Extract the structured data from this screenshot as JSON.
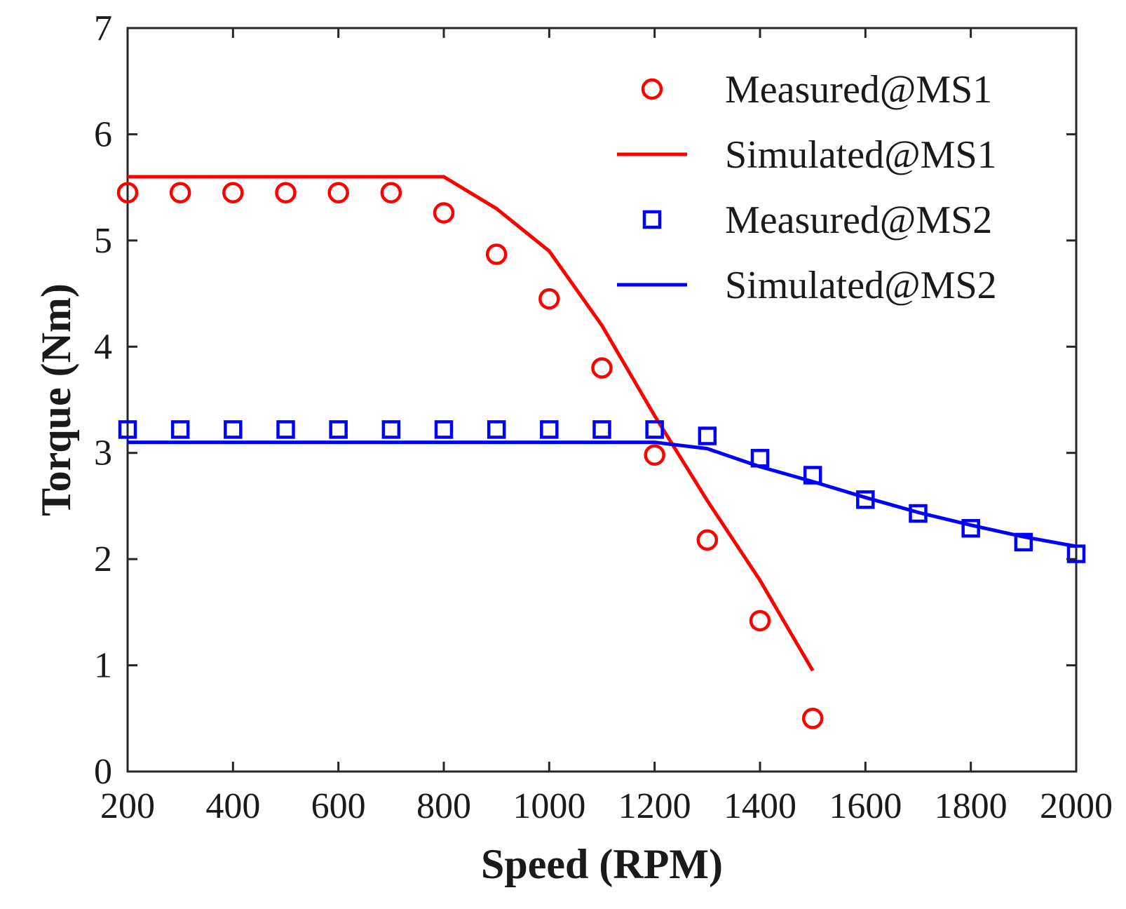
{
  "chart_data": {
    "type": "line",
    "title": "",
    "xlabel": "Speed (RPM)",
    "ylabel": "Torque (Nm)",
    "xlim": [
      200,
      2000
    ],
    "ylim": [
      0,
      7
    ],
    "xticks": [
      200,
      400,
      600,
      800,
      1000,
      1200,
      1400,
      1600,
      1800,
      2000
    ],
    "yticks": [
      0,
      1,
      2,
      3,
      4,
      5,
      6,
      7
    ],
    "grid": false,
    "legend_position": "top-right",
    "series": [
      {
        "name": "Measured@MS1",
        "kind": "marker",
        "marker": "circle",
        "color": "#ff0000",
        "x": [
          200,
          300,
          400,
          500,
          600,
          700,
          800,
          900,
          1000,
          1100,
          1200,
          1300,
          1400,
          1500
        ],
        "y": [
          5.45,
          5.45,
          5.45,
          5.45,
          5.45,
          5.45,
          5.26,
          4.87,
          4.45,
          3.8,
          2.98,
          2.18,
          1.42,
          0.5
        ]
      },
      {
        "name": "Simulated@MS1",
        "kind": "line",
        "color": "#ff0000",
        "x": [
          200,
          800,
          900,
          1000,
          1100,
          1200,
          1300,
          1400,
          1500
        ],
        "y": [
          5.6,
          5.6,
          5.3,
          4.9,
          4.2,
          3.35,
          2.55,
          1.8,
          0.95
        ]
      },
      {
        "name": "Measured@MS2",
        "kind": "marker",
        "marker": "square",
        "color": "#0000ff",
        "x": [
          200,
          300,
          400,
          500,
          600,
          700,
          800,
          900,
          1000,
          1100,
          1200,
          1300,
          1400,
          1500,
          1600,
          1700,
          1800,
          1900,
          2000
        ],
        "y": [
          3.22,
          3.22,
          3.22,
          3.22,
          3.22,
          3.22,
          3.22,
          3.22,
          3.22,
          3.22,
          3.22,
          3.16,
          2.95,
          2.79,
          2.56,
          2.43,
          2.29,
          2.16,
          2.05
        ]
      },
      {
        "name": "Simulated@MS2",
        "kind": "line",
        "color": "#0000ff",
        "x": [
          200,
          1200,
          1300,
          1400,
          1500,
          1600,
          1700,
          1800,
          1900,
          2000
        ],
        "y": [
          3.1,
          3.1,
          3.04,
          2.87,
          2.73,
          2.58,
          2.44,
          2.32,
          2.21,
          2.12
        ]
      }
    ]
  }
}
